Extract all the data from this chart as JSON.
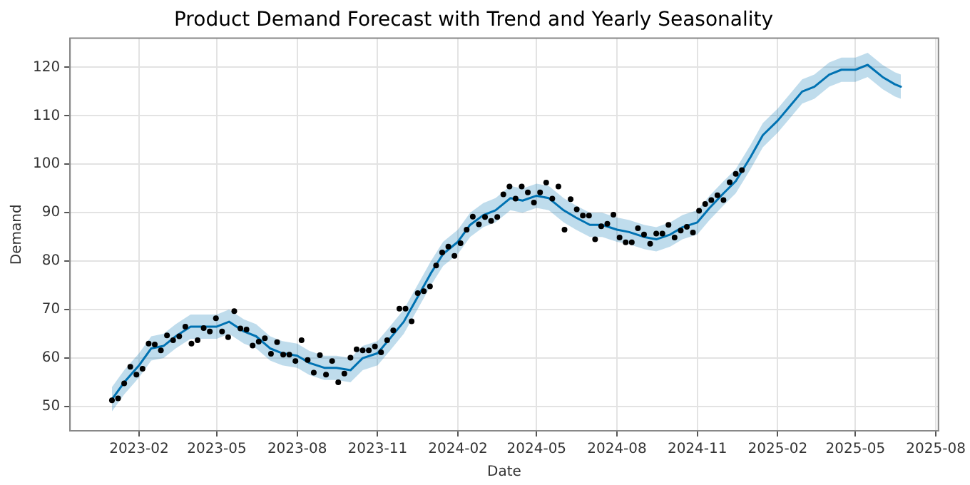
{
  "chart_data": {
    "type": "line",
    "title": "Product Demand Forecast with Trend and Yearly Seasonality",
    "xlabel": "Date",
    "ylabel": "Demand",
    "xlim": [
      "2022-11-14",
      "2025-08-04"
    ],
    "xticks": [
      "2023-02",
      "2023-05",
      "2023-08",
      "2023-11",
      "2024-02",
      "2024-05",
      "2024-08",
      "2024-11",
      "2025-02",
      "2025-05",
      "2025-08"
    ],
    "ylim": [
      45,
      126
    ],
    "yticks": [
      50,
      60,
      70,
      80,
      90,
      100,
      110,
      120
    ],
    "grid": true,
    "legend": false,
    "series": [
      {
        "color": "#0072b2",
        "marker": "none",
        "line_style": "solid",
        "x": [
          "2023-01-01",
          "2023-01-15",
          "2023-02-01",
          "2023-02-15",
          "2023-03-01",
          "2023-03-15",
          "2023-04-01",
          "2023-04-15",
          "2023-05-01",
          "2023-05-15",
          "2023-06-01",
          "2023-06-15",
          "2023-07-01",
          "2023-07-15",
          "2023-08-01",
          "2023-08-15",
          "2023-09-01",
          "2023-09-15",
          "2023-10-01",
          "2023-10-15",
          "2023-11-01",
          "2023-11-15",
          "2023-12-01",
          "2023-12-15",
          "2024-01-01",
          "2024-01-15",
          "2024-02-01",
          "2024-02-15",
          "2024-03-01",
          "2024-03-15",
          "2024-04-01",
          "2024-04-15",
          "2024-05-01",
          "2024-05-15",
          "2024-06-01",
          "2024-06-15",
          "2024-07-01",
          "2024-07-15",
          "2024-08-01",
          "2024-08-15",
          "2024-09-01",
          "2024-09-15",
          "2024-10-01",
          "2024-10-15",
          "2024-11-01",
          "2024-11-15",
          "2024-12-01",
          "2024-12-15",
          "2025-01-01",
          "2025-01-15",
          "2025-02-01",
          "2025-02-15",
          "2025-03-01",
          "2025-03-15",
          "2025-04-01",
          "2025-04-15",
          "2025-05-01",
          "2025-05-15",
          "2025-06-01",
          "2025-06-15",
          "2025-06-22"
        ],
        "values": [
          51.5,
          55,
          58.5,
          62,
          62.5,
          64.5,
          66.5,
          66.5,
          66.5,
          67.5,
          65.5,
          64.5,
          62,
          61,
          60.5,
          59,
          58,
          58,
          57.5,
          60,
          61,
          64,
          67.5,
          72,
          77.5,
          81.5,
          84,
          87.5,
          89.5,
          90.5,
          93,
          92.5,
          93.5,
          93,
          90.5,
          89,
          87.5,
          87.5,
          86.5,
          86,
          85,
          84.5,
          85.5,
          87,
          88,
          91,
          94,
          96.5,
          101.5,
          106,
          109,
          112,
          115,
          116,
          118.5,
          119.5,
          119.5,
          120.5,
          118,
          116.5,
          116
        ],
        "lower": [
          49,
          52.5,
          56,
          59.5,
          60,
          62,
          64,
          64,
          64,
          65,
          63,
          62,
          59.5,
          58.5,
          58,
          56.5,
          55.5,
          55.5,
          55,
          57.5,
          58.5,
          61.5,
          65,
          69.5,
          75,
          79,
          81.5,
          85,
          87,
          88,
          90.5,
          90,
          91,
          90.5,
          88,
          86.5,
          85,
          85,
          84,
          83.5,
          82.5,
          82,
          83,
          84.5,
          85.5,
          88.5,
          91.5,
          94,
          99,
          103.5,
          106.5,
          109.5,
          112.5,
          113.5,
          116,
          117,
          117,
          118,
          115.5,
          114,
          113.5
        ],
        "upper": [
          54,
          57.5,
          61,
          64.5,
          65,
          67,
          69,
          69,
          69,
          70,
          68,
          67,
          64.5,
          63.5,
          63,
          61.5,
          60.5,
          60.5,
          60,
          62.5,
          63.5,
          66.5,
          70,
          74.5,
          80,
          84,
          86.5,
          90,
          92,
          93,
          95.5,
          95,
          96,
          95.5,
          93,
          91.5,
          90,
          90,
          89,
          88.5,
          87.5,
          87,
          88,
          89.5,
          90.5,
          93.5,
          96.5,
          99,
          104,
          108.5,
          111.5,
          114.5,
          117.5,
          118.5,
          121,
          122,
          122,
          123,
          120.5,
          119,
          118.5
        ]
      },
      {
        "type": "scatter",
        "color": "#000000",
        "marker": "circle",
        "x": [
          "2023-01-01",
          "2023-01-08",
          "2023-01-15",
          "2023-01-22",
          "2023-01-29",
          "2023-02-05",
          "2023-02-12",
          "2023-02-19",
          "2023-02-26",
          "2023-03-05",
          "2023-03-12",
          "2023-03-19",
          "2023-03-26",
          "2023-04-02",
          "2023-04-09",
          "2023-04-16",
          "2023-04-23",
          "2023-04-30",
          "2023-05-07",
          "2023-05-14",
          "2023-05-21",
          "2023-05-28",
          "2023-06-04",
          "2023-06-11",
          "2023-06-18",
          "2023-06-25",
          "2023-07-02",
          "2023-07-09",
          "2023-07-16",
          "2023-07-23",
          "2023-07-30",
          "2023-08-06",
          "2023-08-13",
          "2023-08-20",
          "2023-08-27",
          "2023-09-03",
          "2023-09-10",
          "2023-09-17",
          "2023-09-24",
          "2023-10-01",
          "2023-10-08",
          "2023-10-15",
          "2023-10-22",
          "2023-10-29",
          "2023-11-05",
          "2023-11-12",
          "2023-11-19",
          "2023-11-26",
          "2023-12-03",
          "2023-12-10",
          "2023-12-17",
          "2023-12-24",
          "2023-12-31",
          "2024-01-07",
          "2024-01-14",
          "2024-01-21",
          "2024-01-28",
          "2024-02-04",
          "2024-02-11",
          "2024-02-18",
          "2024-02-25",
          "2024-03-03",
          "2024-03-10",
          "2024-03-17",
          "2024-03-24",
          "2024-03-31",
          "2024-04-07",
          "2024-04-14",
          "2024-04-21",
          "2024-04-28",
          "2024-05-05",
          "2024-05-12",
          "2024-05-19",
          "2024-05-26",
          "2024-06-02",
          "2024-06-09",
          "2024-06-16",
          "2024-06-23",
          "2024-06-30",
          "2024-07-07",
          "2024-07-14",
          "2024-07-21",
          "2024-07-28",
          "2024-08-04",
          "2024-08-11",
          "2024-08-18",
          "2024-08-25",
          "2024-09-01",
          "2024-09-08",
          "2024-09-15",
          "2024-09-22",
          "2024-09-29",
          "2024-10-06",
          "2024-10-13",
          "2024-10-20",
          "2024-10-27",
          "2024-11-03",
          "2024-11-10",
          "2024-11-17",
          "2024-11-24",
          "2024-12-01",
          "2024-12-08",
          "2024-12-15",
          "2024-12-22"
        ],
        "values": [
          51.3,
          51.7,
          54.8,
          58.2,
          56.6,
          57.8,
          63.0,
          62.8,
          61.6,
          64.7,
          63.7,
          64.5,
          66.5,
          63.0,
          63.7,
          66.2,
          65.5,
          68.2,
          65.5,
          64.3,
          69.7,
          66.1,
          65.9,
          62.6,
          63.4,
          64.1,
          60.9,
          63.3,
          60.7,
          60.7,
          59.4,
          63.7,
          59.6,
          57.0,
          60.6,
          56.6,
          59.4,
          55.0,
          56.8,
          60.1,
          61.8,
          61.6,
          61.6,
          62.4,
          61.2,
          63.7,
          65.7,
          70.2,
          70.2,
          67.6,
          73.4,
          73.8,
          74.8,
          79.1,
          81.8,
          83.0,
          81.1,
          83.7,
          86.5,
          89.2,
          87.6,
          89.1,
          88.3,
          89.1,
          93.8,
          95.4,
          92.9,
          95.4,
          94.2,
          92.1,
          94.2,
          96.2,
          92.9,
          95.4,
          86.5,
          92.8,
          90.7,
          89.4,
          89.4,
          84.5,
          87.2,
          87.7,
          89.6,
          84.9,
          83.9,
          83.9,
          86.8,
          85.5,
          83.6,
          85.7,
          85.7,
          87.5,
          84.9,
          86.3,
          87.1,
          85.9,
          90.4,
          91.8,
          92.6,
          93.6,
          92.6,
          96.3,
          98.0,
          98.8
        ]
      }
    ]
  }
}
